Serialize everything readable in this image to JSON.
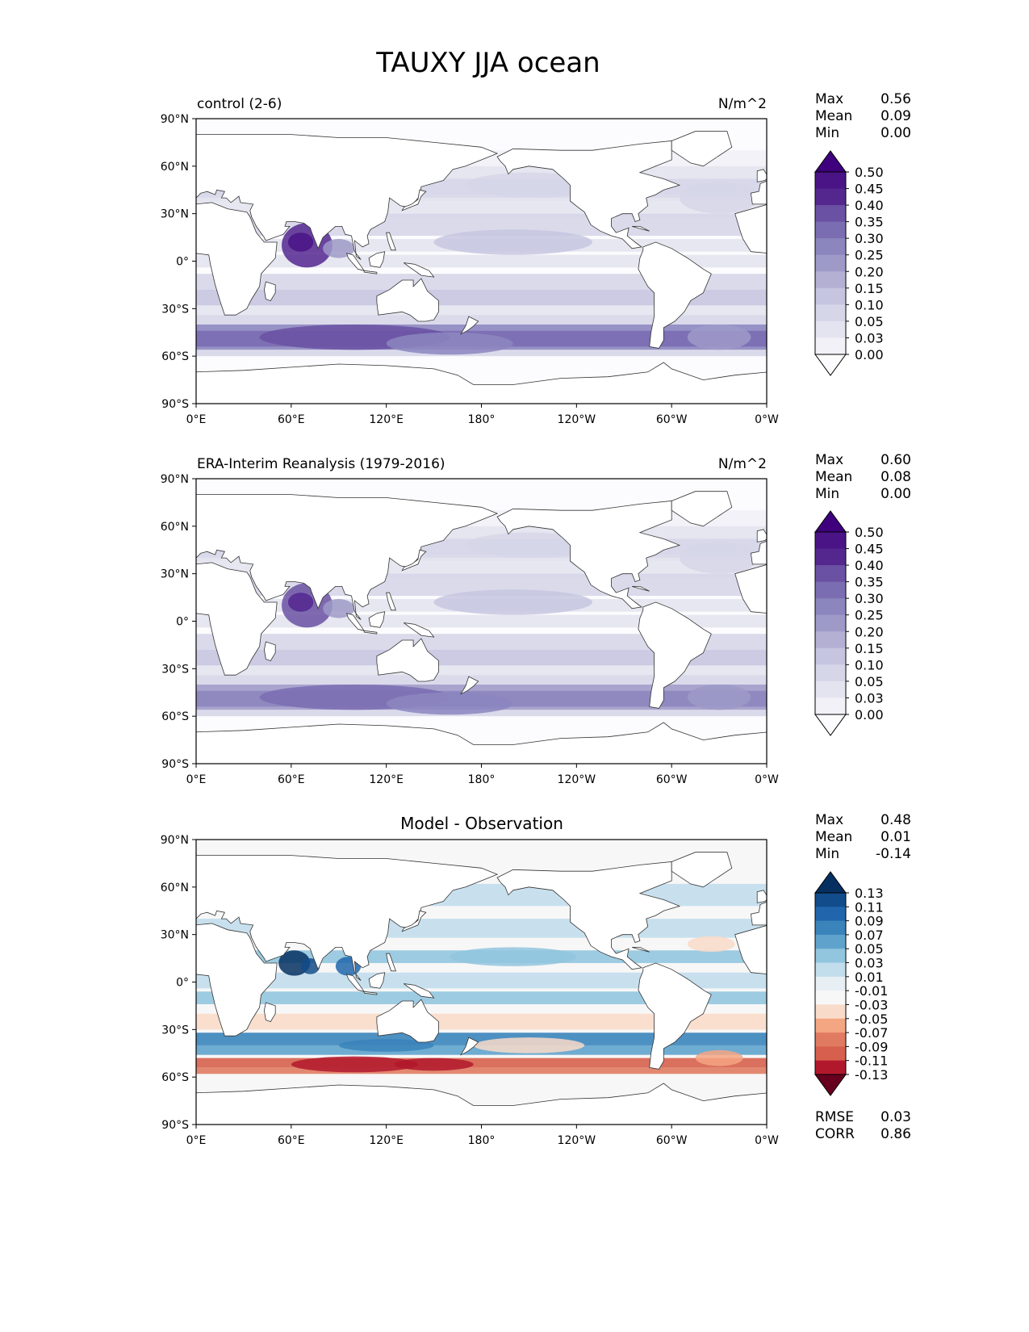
{
  "figure": {
    "title": "TAUXY JJA ocean"
  },
  "panels": [
    {
      "id": "test",
      "left_title": "control (2-6)",
      "center_title": "",
      "right_title": "N/m^2",
      "stats": [
        {
          "label": "Max",
          "value": "0.56"
        },
        {
          "label": "Mean",
          "value": "0.09"
        },
        {
          "label": "Min",
          "value": "0.00"
        }
      ],
      "colorbar": {
        "levels": [
          "0.50",
          "0.45",
          "0.40",
          "0.35",
          "0.30",
          "0.25",
          "0.20",
          "0.15",
          "0.10",
          "0.05",
          "0.03",
          "0.00"
        ],
        "colors": [
          "#3f007d",
          "#4a1486",
          "#54278f",
          "#6a51a3",
          "#7b6db1",
          "#8c86bf",
          "#9e9ac8",
          "#b3b0d4",
          "#c6c5e0",
          "#d6d6e9",
          "#e4e4f0",
          "#f2f1f7",
          "#fcfbfd"
        ]
      },
      "footer_stats": []
    },
    {
      "id": "reference",
      "left_title": "ERA-Interim Reanalysis (1979-2016)",
      "center_title": "",
      "right_title": "N/m^2",
      "stats": [
        {
          "label": "Max",
          "value": "0.60"
        },
        {
          "label": "Mean",
          "value": "0.08"
        },
        {
          "label": "Min",
          "value": "0.00"
        }
      ],
      "colorbar": {
        "levels": [
          "0.50",
          "0.45",
          "0.40",
          "0.35",
          "0.30",
          "0.25",
          "0.20",
          "0.15",
          "0.10",
          "0.05",
          "0.03",
          "0.00"
        ],
        "colors": [
          "#3f007d",
          "#4a1486",
          "#54278f",
          "#6a51a3",
          "#7b6db1",
          "#8c86bf",
          "#9e9ac8",
          "#b3b0d4",
          "#c6c5e0",
          "#d6d6e9",
          "#e4e4f0",
          "#f2f1f7",
          "#fcfbfd"
        ]
      },
      "footer_stats": []
    },
    {
      "id": "difference",
      "left_title": "",
      "center_title": "Model - Observation",
      "right_title": "",
      "stats": [
        {
          "label": "Max",
          "value": "0.48"
        },
        {
          "label": "Mean",
          "value": "0.01"
        },
        {
          "label": "Min",
          "value": "-0.14"
        }
      ],
      "colorbar": {
        "levels": [
          "0.13",
          "0.11",
          "0.09",
          "0.07",
          "0.05",
          "0.03",
          "0.01",
          "-0.01",
          "-0.03",
          "-0.05",
          "-0.07",
          "-0.09",
          "-0.11",
          "-0.13"
        ],
        "colors": [
          "#053061",
          "#124c8a",
          "#2166ac",
          "#3a84bb",
          "#5fa3cd",
          "#92c5de",
          "#c2ddec",
          "#e8eff4",
          "#f7f7f7",
          "#f9dbc9",
          "#f4a582",
          "#e07b61",
          "#d6604d",
          "#b2182b",
          "#67001f"
        ]
      },
      "footer_stats": [
        {
          "label": "RMSE",
          "value": "0.03"
        },
        {
          "label": "CORR",
          "value": "0.86"
        }
      ]
    }
  ],
  "axes": {
    "lat_ticks": [
      "90°N",
      "60°N",
      "30°N",
      "0°",
      "30°S",
      "60°S",
      "90°S"
    ],
    "lon_ticks": [
      "0°E",
      "60°E",
      "120°E",
      "180°",
      "120°W",
      "60°W",
      "0°W"
    ]
  },
  "colors": {
    "land": "#ffffff",
    "coast": "#333333"
  }
}
